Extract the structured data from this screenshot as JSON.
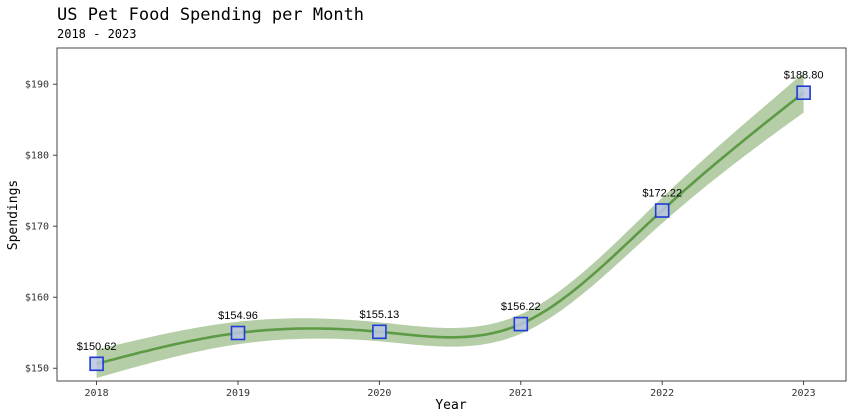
{
  "chart_data": {
    "type": "line",
    "title": "US Pet Food Spending per Month",
    "subtitle": "2018 - 2023",
    "xlabel": "Year",
    "ylabel": "Spendings",
    "x": [
      2018,
      2019,
      2020,
      2021,
      2022,
      2023
    ],
    "xticks": [
      "2018",
      "2019",
      "2020",
      "2021",
      "2022",
      "2023"
    ],
    "yticks": [
      "$150",
      "$160",
      "$170",
      "$180",
      "$190"
    ],
    "ytick_values": [
      150,
      160,
      170,
      180,
      190
    ],
    "values": [
      150.62,
      154.96,
      155.13,
      156.22,
      172.22,
      188.8
    ],
    "data_labels": [
      "$150.62",
      "$154.96",
      "$155.13",
      "$156.22",
      "$172.22",
      "$188.80"
    ],
    "xlim": [
      2017.72,
      2023.3
    ],
    "ylim": [
      148.2,
      195.1
    ],
    "grid": false,
    "legend": "none",
    "colors": {
      "line": "#5c9a45",
      "band": "#b5cea8",
      "marker_fill": "#b8c4e0",
      "marker_edge": "#1f3bd6"
    }
  }
}
